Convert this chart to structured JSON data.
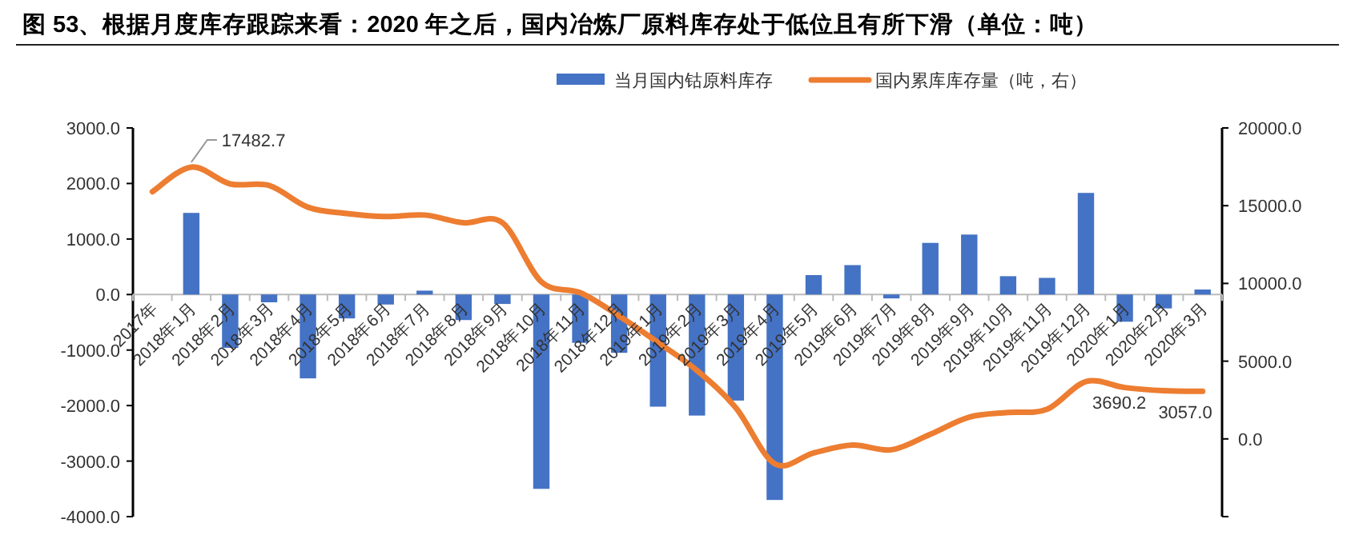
{
  "chart_data": {
    "type": "bar",
    "title": "图 53、根据月度库存跟踪来看：2020 年之后，国内冶炼厂原料库存处于低位且有所下滑（单位：吨）",
    "categories": [
      "2017年",
      "2018年1月",
      "2018年2月",
      "2018年3月",
      "2018年4月",
      "2018年5月",
      "2018年6月",
      "2018年7月",
      "2018年8月",
      "2018年9月",
      "2018年10月",
      "2018年11月",
      "2018年12月",
      "2019年1月",
      "2019年2月",
      "2019年3月",
      "2019年4月",
      "2019年5月",
      "2019年6月",
      "2019年7月",
      "2019年8月",
      "2019年9月",
      "2019年10月",
      "2019年11月",
      "2019年12月",
      "2020年1月",
      "2020年2月",
      "2020年3月"
    ],
    "series": [
      {
        "name": "当月国内钴原料库存",
        "color": "#4472c4",
        "values": [
          null,
          1470,
          -960,
          -140,
          -1510,
          -430,
          -180,
          70,
          -460,
          -170,
          -3500,
          -870,
          -1050,
          -2020,
          -2180,
          -1910,
          -3700,
          350,
          530,
          -70,
          930,
          1080,
          330,
          300,
          1830,
          -490,
          -250,
          90
        ]
      },
      {
        "name": "国内累库库存量（吨，右）",
        "type": "line",
        "axis": "y2",
        "color": "#ed7d31",
        "values": [
          15900,
          17482.7,
          16400,
          16300,
          14900,
          14500,
          14300,
          14400,
          13900,
          13900,
          10100,
          9400,
          7900,
          6200,
          4400,
          2000,
          -1600,
          -900,
          -400,
          -700,
          300,
          1400,
          1700,
          1900,
          3690.2,
          3300,
          3100,
          3057.0
        ],
        "value_labels": [
          null,
          "17482.7",
          null,
          null,
          null,
          null,
          null,
          null,
          null,
          null,
          null,
          null,
          null,
          null,
          null,
          null,
          null,
          null,
          null,
          null,
          null,
          null,
          null,
          null,
          "3690.2",
          null,
          null,
          "3057.0"
        ]
      }
    ],
    "ylim": [
      -4000,
      3000
    ],
    "yticks": [
      {
        "value": -4000,
        "label": "-4000.0"
      },
      {
        "value": -3000,
        "label": "-3000.0"
      },
      {
        "value": -2000,
        "label": "-2000.0"
      },
      {
        "value": -1000,
        "label": "-1000.0"
      },
      {
        "value": 0,
        "label": "0.0"
      },
      {
        "value": 1000,
        "label": "1000.0"
      },
      {
        "value": 2000,
        "label": "2000.0"
      },
      {
        "value": 3000,
        "label": "3000.0"
      }
    ],
    "y2lim": [
      -5000,
      20000
    ],
    "y2ticks": [
      {
        "value": -5000,
        "label": null
      },
      {
        "value": 0,
        "label": "0.0"
      },
      {
        "value": 5000,
        "label": "5000.0"
      },
      {
        "value": 10000,
        "label": "10000.0"
      },
      {
        "value": 15000,
        "label": "15000.0"
      },
      {
        "value": 20000,
        "label": "20000.0"
      }
    ],
    "legend": "top",
    "grid": false
  }
}
